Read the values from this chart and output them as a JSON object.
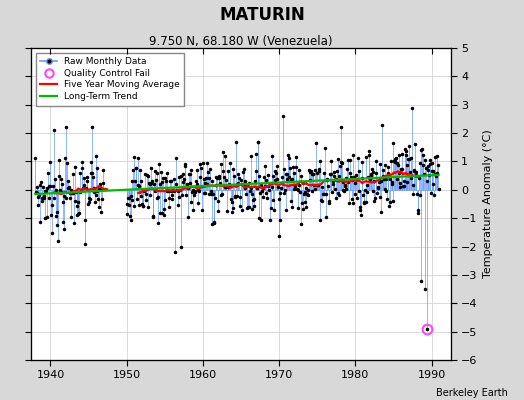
{
  "title": "MATURIN",
  "subtitle": "9.750 N, 68.180 W (Venezuela)",
  "ylabel": "Temperature Anomaly (°C)",
  "credit": "Berkeley Earth",
  "xlim": [
    1937.5,
    1992.5
  ],
  "ylim": [
    -6,
    5
  ],
  "yticks": [
    -6,
    -5,
    -4,
    -3,
    -2,
    -1,
    0,
    1,
    2,
    3,
    4,
    5
  ],
  "xticks": [
    1940,
    1950,
    1960,
    1970,
    1980,
    1990
  ],
  "bg_color": "#d8d8d8",
  "plot_bg_color": "#ffffff",
  "raw_color": "#6699ff",
  "dot_color": "#000000",
  "ma_color": "#ff0000",
  "trend_color": "#00bb00",
  "qc_fail_color": "#ff44ff",
  "qc_fail_x": 1989.42,
  "qc_fail_y": -4.9,
  "trend_x0": 1938.0,
  "trend_y0": -0.15,
  "trend_x1": 1990.5,
  "trend_y1": 0.52,
  "seed": 7
}
